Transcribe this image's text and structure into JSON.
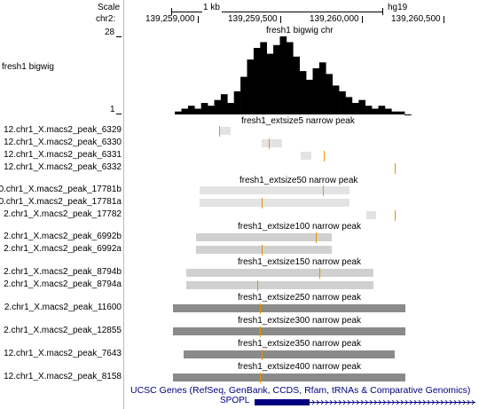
{
  "ruler": {
    "scale_label": "Scale",
    "chrom_label": "chr2:",
    "scale_bar_label": "1 kb",
    "assembly": "hg19",
    "positions": [
      "139,259,000",
      "139,259,500",
      "139,260,000",
      "139,260,500"
    ]
  },
  "wiggle": {
    "track_title": "fresh1 bigwig chr",
    "side_label": "fresh1 bigwig",
    "y_max": "28",
    "y_min": "1",
    "color": "#000000",
    "chart_data": {
      "type": "area",
      "x": [
        139258880,
        139258920,
        139258960,
        139259000,
        139259040,
        139259080,
        139259120,
        139259160,
        139259200,
        139259240,
        139259280,
        139259320,
        139259360,
        139259400,
        139259440,
        139259480,
        139259520,
        139259560,
        139259600,
        139259640,
        139259680,
        139259720,
        139259760,
        139259800,
        139259840,
        139259880,
        139259920,
        139259960,
        139260000,
        139260040,
        139260080,
        139260120,
        139260160,
        139260200,
        139260240,
        139260280
      ],
      "values": [
        2,
        3,
        4,
        3,
        5,
        4,
        6,
        8,
        5,
        9,
        14,
        20,
        24,
        26,
        22,
        25,
        28,
        26,
        21,
        16,
        13,
        17,
        19,
        15,
        11,
        9,
        7,
        5,
        6,
        4,
        3,
        4,
        3,
        2,
        2,
        1
      ],
      "ylim": [
        1,
        28
      ]
    }
  },
  "colors": {
    "marker": "#e69500",
    "light": "#e3e3e3",
    "medium": "#d0d0d0",
    "dark": "#8a8a8a",
    "gene": "#000080",
    "gene_header": "#000080"
  },
  "groups": [
    {
      "title": "fresh1_extsize5 narrow peak",
      "rows": [
        {
          "label": "12.chr1_X.macs2_peak_6329",
          "marker": 139259130
        },
        {
          "label": "12.chr1_X.macs2_peak_6330",
          "marker": 139259430
        },
        {
          "label": "12.chr1_X.macs2_peak_6331",
          "marker": 139259770
        },
        {
          "label": "12.chr1_X.macs2_peak_6332",
          "marker": 139260200
        }
      ]
    },
    {
      "title": "fresh1_extsize50 narrow peak",
      "rows": [
        {
          "label": "0.chr1_X.macs2_peak_17781b",
          "marker": 139259760
        },
        {
          "label": "0.chr1_X.macs2_peak_17781a",
          "marker": 139259390
        },
        {
          "label": "2.chr1_X.macs2_peak_17782",
          "marker": 139260200
        }
      ]
    },
    {
      "title": "fresh1_extsize100 narrow peak",
      "rows": [
        {
          "label": "2.chr1_X.macs2_peak_6992b",
          "marker": 139259720
        },
        {
          "label": "2.chr1_X.macs2_peak_6992a",
          "marker": 139259390
        }
      ]
    },
    {
      "title": "fresh1_extsize150 narrow peak",
      "rows": [
        {
          "label": "2.chr1_X.macs2_peak_8794b",
          "marker": 139259740
        },
        {
          "label": "2.chr1_X.macs2_peak_8794a",
          "marker": 139259360
        }
      ]
    },
    {
      "title": "fresh1_extsize250 narrow peak",
      "rows": [
        {
          "label": "2.chr1_X.macs2_peak_11600",
          "marker": 139259380
        }
      ]
    },
    {
      "title": "fresh1_extsize300 narrow peak",
      "rows": [
        {
          "label": "2.chr1_X.macs2_peak_12855",
          "marker": 139259380
        }
      ]
    },
    {
      "title": "fresh1_extsize350 narrow peak",
      "rows": [
        {
          "label": "12.chr1_X.macs2_peak_7643",
          "marker": 139259390
        }
      ]
    },
    {
      "title": "fresh1_extsize400 narrow peak",
      "rows": [
        {
          "label": "12.chr1_X.macs2_peak_8158",
          "marker": 139259380
        }
      ]
    }
  ],
  "genes": {
    "track_title": "UCSC Genes (RefSeq, GenBank, CCDS, Rfam, tRNAs & Comparative Genomics)",
    "gene_name": "SPOPL"
  }
}
